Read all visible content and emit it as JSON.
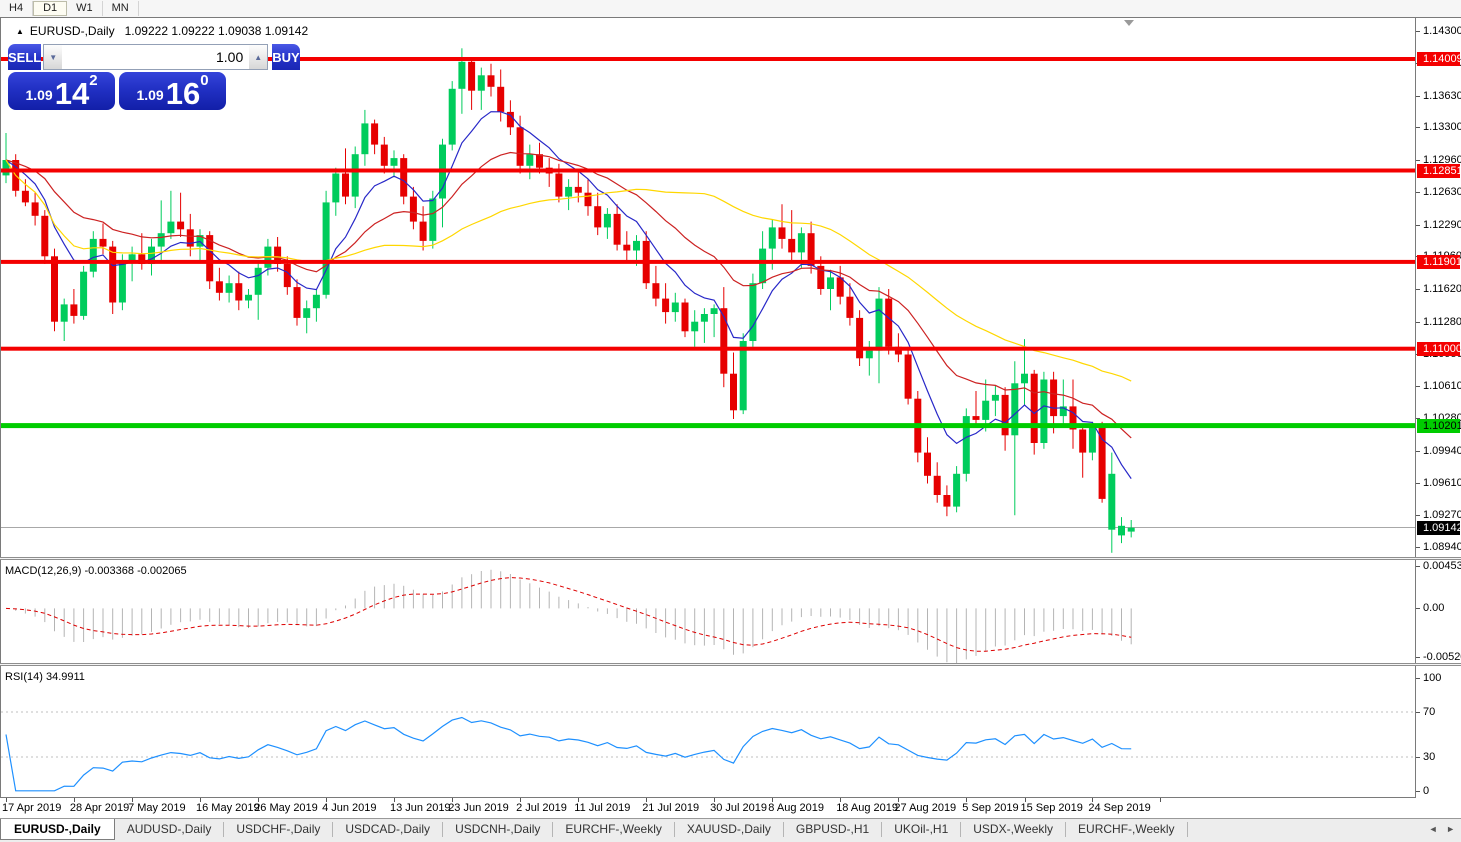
{
  "toolbar": {
    "timeframes": [
      {
        "label": "H4",
        "active": false
      },
      {
        "label": "D1",
        "active": true
      },
      {
        "label": "W1",
        "active": false
      },
      {
        "label": "MN",
        "active": false
      }
    ]
  },
  "chart": {
    "title": {
      "collapse_icon": "▲",
      "symbol_period": "EURUSD-,Daily",
      "ohlc_text": "1.09222 1.09222 1.09038 1.09142"
    },
    "one_click": {
      "sell_label": "SELL",
      "buy_label": "BUY",
      "volume": "1.00",
      "spin_down": "▼",
      "spin_up": "▲",
      "sell_price": {
        "small": "1.09",
        "big": "14",
        "sup": "2"
      },
      "buy_price": {
        "small": "1.09",
        "big": "16",
        "sup": "0"
      }
    }
  },
  "macd_panel": {
    "label": "MACD(12,26,9) -0.003368 -0.002065",
    "scale": {
      "top": "0.004536",
      "mid": "0.00",
      "bottom": "-0.005205"
    }
  },
  "rsi_panel": {
    "label": "RSI(14) 34.9911",
    "scale_ticks": [
      "100",
      "70",
      "30",
      "0"
    ]
  },
  "tabs": {
    "items": [
      {
        "label": "EURUSD-,Daily",
        "active": true
      },
      {
        "label": "AUDUSD-,Daily",
        "active": false
      },
      {
        "label": "USDCHF-,Daily",
        "active": false
      },
      {
        "label": "USDCAD-,Daily",
        "active": false
      },
      {
        "label": "USDCNH-,Daily",
        "active": false
      },
      {
        "label": "EURCHF-,Weekly",
        "active": false
      },
      {
        "label": "XAUUSD-,Daily",
        "active": false
      },
      {
        "label": "GBPUSD-,H1",
        "active": false
      },
      {
        "label": "UKOil-,H1",
        "active": false
      },
      {
        "label": "USDX-,Weekly",
        "active": false
      },
      {
        "label": "EURCHF-,Weekly",
        "active": false
      }
    ],
    "arrow_left": "◄",
    "arrow_right": "►"
  },
  "chart_data": {
    "type": "candlestick",
    "symbol": "EURUSD-",
    "timeframe": "Daily",
    "ohlc_current": {
      "open": 1.09222,
      "high": 1.09222,
      "low": 1.09038,
      "close": 1.09142
    },
    "ylim": [
      1.08836,
      1.14435
    ],
    "y_ticks": [
      1.143,
      1.1397,
      1.1363,
      1.133,
      1.1296,
      1.1263,
      1.1229,
      1.1196,
      1.1162,
      1.1128,
      1.1095,
      1.1061,
      1.1028,
      1.0994,
      1.0961,
      1.0927,
      1.0894
    ],
    "x_labels": [
      "17 Apr 2019",
      "28 Apr 2019",
      "7 May 2019",
      "16 May 2019",
      "26 May 2019",
      "4 Jun 2019",
      "13 Jun 2019",
      "23 Jun 2019",
      "2 Jul 2019",
      "11 Jul 2019",
      "21 Jul 2019",
      "30 Jul 2019",
      "8 Aug 2019",
      "18 Aug 2019",
      "27 Aug 2019",
      "5 Sep 2019",
      "15 Sep 2019",
      "24 Sep 2019"
    ],
    "x_label_indices": [
      0,
      7,
      13,
      20,
      26,
      33,
      40,
      46,
      53,
      59,
      66,
      73,
      79,
      86,
      92,
      99,
      105,
      112
    ],
    "extra_x_tick_indices": [
      119
    ],
    "hlines": [
      {
        "price": 1.14009,
        "color": "#f40000",
        "badge_text_color": "#ffffff",
        "thickness": 4
      },
      {
        "price": 1.12851,
        "color": "#f40000",
        "badge_text_color": "#ffffff",
        "thickness": 4
      },
      {
        "price": 1.11901,
        "color": "#f40000",
        "badge_text_color": "#ffffff",
        "thickness": 4
      },
      {
        "price": 1.11,
        "color": "#f40000",
        "badge_text_color": "#ffffff",
        "thickness": 4
      },
      {
        "price": 1.10201,
        "color": "#00cc00",
        "badge_text_color": "#000000",
        "thickness": 5
      }
    ],
    "current_price": 1.09142,
    "current_price_badge": {
      "bg": "#000000",
      "fg": "#ffffff"
    },
    "moving_averages": [
      {
        "method": "ema",
        "period": 8,
        "color": "#2828c8"
      },
      {
        "method": "ema",
        "period": 21,
        "color": "#cc2222"
      },
      {
        "method": "sma",
        "period": 40,
        "color": "#ffd700"
      }
    ],
    "macd": {
      "fast": 12,
      "slow": 26,
      "signal": 9,
      "current_macd": -0.003368,
      "current_signal": -0.002065,
      "scale_max": 0.004536,
      "scale_min": -0.005205,
      "histogram_color": "#b4b4b4",
      "signal_color": "#dd0000"
    },
    "rsi": {
      "period": 14,
      "current": 34.9911,
      "levels": [
        70,
        30
      ],
      "scale_ticks": [
        100,
        70,
        30,
        0
      ],
      "color": "#1e90ff",
      "level_color": "#bfbfbf"
    },
    "colors": {
      "bull": "#00cc5c",
      "bear": "#e60000",
      "background": "#ffffff",
      "bid_line": "#a8a8a8"
    },
    "candles": [
      [
        1.128,
        1.1324,
        1.1272,
        1.1296
      ],
      [
        1.1296,
        1.1302,
        1.1258,
        1.1264
      ],
      [
        1.1264,
        1.1276,
        1.1248,
        1.1252
      ],
      [
        1.1252,
        1.1262,
        1.1228,
        1.1238
      ],
      [
        1.1238,
        1.1244,
        1.1188,
        1.1196
      ],
      [
        1.1196,
        1.1204,
        1.1118,
        1.1128
      ],
      [
        1.1128,
        1.1152,
        1.1108,
        1.1146
      ],
      [
        1.1146,
        1.1162,
        1.1126,
        1.1134
      ],
      [
        1.1134,
        1.1186,
        1.113,
        1.118
      ],
      [
        1.118,
        1.1222,
        1.1174,
        1.1214
      ],
      [
        1.1214,
        1.123,
        1.1198,
        1.1206
      ],
      [
        1.1206,
        1.1212,
        1.1136,
        1.1148
      ],
      [
        1.1148,
        1.1198,
        1.114,
        1.1192
      ],
      [
        1.1192,
        1.1206,
        1.117,
        1.1198
      ],
      [
        1.1198,
        1.122,
        1.1182,
        1.1188
      ],
      [
        1.1188,
        1.1214,
        1.1176,
        1.1206
      ],
      [
        1.1206,
        1.1254,
        1.119,
        1.122
      ],
      [
        1.122,
        1.1264,
        1.1214,
        1.1232
      ],
      [
        1.1232,
        1.1262,
        1.1216,
        1.1224
      ],
      [
        1.1224,
        1.124,
        1.1196,
        1.1206
      ],
      [
        1.1206,
        1.1224,
        1.119,
        1.1218
      ],
      [
        1.1218,
        1.1222,
        1.1162,
        1.117
      ],
      [
        1.117,
        1.1184,
        1.115,
        1.1158
      ],
      [
        1.1158,
        1.1176,
        1.1148,
        1.1168
      ],
      [
        1.1168,
        1.118,
        1.114,
        1.115
      ],
      [
        1.115,
        1.1162,
        1.1142,
        1.1156
      ],
      [
        1.1156,
        1.119,
        1.113,
        1.1184
      ],
      [
        1.1184,
        1.1214,
        1.1176,
        1.1206
      ],
      [
        1.1206,
        1.1216,
        1.118,
        1.1188
      ],
      [
        1.1188,
        1.1196,
        1.1156,
        1.1164
      ],
      [
        1.1164,
        1.1172,
        1.1124,
        1.1132
      ],
      [
        1.1132,
        1.115,
        1.1116,
        1.1142
      ],
      [
        1.1142,
        1.1162,
        1.1128,
        1.1156
      ],
      [
        1.1156,
        1.1264,
        1.1152,
        1.1252
      ],
      [
        1.1252,
        1.1288,
        1.1238,
        1.1282
      ],
      [
        1.1282,
        1.1308,
        1.125,
        1.1258
      ],
      [
        1.1258,
        1.131,
        1.1246,
        1.1302
      ],
      [
        1.1302,
        1.1348,
        1.129,
        1.1334
      ],
      [
        1.1334,
        1.1338,
        1.1302,
        1.1312
      ],
      [
        1.1312,
        1.132,
        1.1282,
        1.129
      ],
      [
        1.129,
        1.1306,
        1.1278,
        1.1298
      ],
      [
        1.1298,
        1.1302,
        1.125,
        1.1258
      ],
      [
        1.1258,
        1.1268,
        1.1224,
        1.1232
      ],
      [
        1.1232,
        1.1248,
        1.1202,
        1.1212
      ],
      [
        1.1212,
        1.1264,
        1.1204,
        1.1256
      ],
      [
        1.1256,
        1.1318,
        1.1226,
        1.1312
      ],
      [
        1.1312,
        1.1378,
        1.1306,
        1.137
      ],
      [
        1.137,
        1.1412,
        1.1344,
        1.1398
      ],
      [
        1.1398,
        1.1402,
        1.1348,
        1.1368
      ],
      [
        1.1368,
        1.1392,
        1.1348,
        1.1384
      ],
      [
        1.1384,
        1.1396,
        1.1362,
        1.1372
      ],
      [
        1.1372,
        1.139,
        1.1336,
        1.1346
      ],
      [
        1.1346,
        1.1358,
        1.1322,
        1.133
      ],
      [
        1.133,
        1.1342,
        1.1282,
        1.129
      ],
      [
        1.129,
        1.1312,
        1.1276,
        1.1302
      ],
      [
        1.1302,
        1.1314,
        1.1282,
        1.1288
      ],
      [
        1.1288,
        1.1298,
        1.1268,
        1.1282
      ],
      [
        1.1282,
        1.1292,
        1.1252,
        1.1258
      ],
      [
        1.1258,
        1.1276,
        1.1244,
        1.1268
      ],
      [
        1.1268,
        1.1286,
        1.1252,
        1.1262
      ],
      [
        1.1262,
        1.1276,
        1.1238,
        1.1248
      ],
      [
        1.1248,
        1.1262,
        1.1218,
        1.1226
      ],
      [
        1.1226,
        1.1246,
        1.1214,
        1.124
      ],
      [
        1.124,
        1.125,
        1.1202,
        1.1208
      ],
      [
        1.1208,
        1.1222,
        1.1192,
        1.1202
      ],
      [
        1.1202,
        1.1218,
        1.1186,
        1.1212
      ],
      [
        1.1212,
        1.1222,
        1.1162,
        1.1168
      ],
      [
        1.1168,
        1.1186,
        1.1144,
        1.1152
      ],
      [
        1.1152,
        1.1168,
        1.1126,
        1.1138
      ],
      [
        1.1138,
        1.1158,
        1.1128,
        1.1148
      ],
      [
        1.1148,
        1.1152,
        1.1112,
        1.1118
      ],
      [
        1.1118,
        1.114,
        1.1102,
        1.1128
      ],
      [
        1.1128,
        1.1142,
        1.1106,
        1.1136
      ],
      [
        1.1136,
        1.1146,
        1.1112,
        1.1142
      ],
      [
        1.1142,
        1.1164,
        1.106,
        1.1074
      ],
      [
        1.1074,
        1.1096,
        1.1027,
        1.1036
      ],
      [
        1.1036,
        1.1116,
        1.1032,
        1.1108
      ],
      [
        1.1108,
        1.1178,
        1.1102,
        1.1168
      ],
      [
        1.1168,
        1.1222,
        1.1162,
        1.1204
      ],
      [
        1.1204,
        1.1234,
        1.1182,
        1.1226
      ],
      [
        1.1226,
        1.125,
        1.1204,
        1.1214
      ],
      [
        1.1214,
        1.1244,
        1.1192,
        1.12
      ],
      [
        1.12,
        1.1226,
        1.1184,
        1.122
      ],
      [
        1.122,
        1.1232,
        1.1178,
        1.1186
      ],
      [
        1.1186,
        1.1196,
        1.1156,
        1.1162
      ],
      [
        1.1162,
        1.1182,
        1.114,
        1.1174
      ],
      [
        1.1174,
        1.1186,
        1.1146,
        1.1154
      ],
      [
        1.1154,
        1.1168,
        1.1124,
        1.1132
      ],
      [
        1.1132,
        1.114,
        1.1082,
        1.109
      ],
      [
        1.109,
        1.1108,
        1.1072,
        1.1098
      ],
      [
        1.1098,
        1.1164,
        1.1064,
        1.1152
      ],
      [
        1.1152,
        1.1162,
        1.1094,
        1.1102
      ],
      [
        1.1102,
        1.1116,
        1.1086,
        1.1094
      ],
      [
        1.1094,
        1.1102,
        1.1042,
        1.1048
      ],
      [
        1.1048,
        1.1056,
        1.0982,
        1.0992
      ],
      [
        1.0992,
        1.1008,
        1.096,
        1.0968
      ],
      [
        1.0968,
        1.0982,
        1.094,
        1.0948
      ],
      [
        1.0948,
        1.0958,
        1.0926,
        1.0936
      ],
      [
        1.0936,
        1.0978,
        1.093,
        1.097
      ],
      [
        1.097,
        1.1038,
        1.0962,
        1.103
      ],
      [
        1.103,
        1.1056,
        1.1018,
        1.1026
      ],
      [
        1.1026,
        1.1068,
        1.1014,
        1.1046
      ],
      [
        1.1046,
        1.1062,
        1.103,
        1.1052
      ],
      [
        1.1052,
        1.106,
        1.0994,
        1.101
      ],
      [
        1.101,
        1.1087,
        1.0927,
        1.1064
      ],
      [
        1.1064,
        1.111,
        1.1042,
        1.1074
      ],
      [
        1.1074,
        1.1078,
        1.099,
        1.1002
      ],
      [
        1.1002,
        1.1076,
        1.0996,
        1.1068
      ],
      [
        1.1068,
        1.1076,
        1.1012,
        1.103
      ],
      [
        1.103,
        1.1068,
        1.1022,
        1.104
      ],
      [
        1.104,
        1.1068,
        1.0996,
        1.1016
      ],
      [
        1.1016,
        1.1022,
        1.0966,
        1.0992
      ],
      [
        1.0992,
        1.1024,
        1.0984,
        1.102
      ],
      [
        1.102,
        1.1024,
        1.094,
        1.0944
      ],
      [
        1.0912,
        1.0992,
        1.0888,
        1.097
      ],
      [
        1.0906,
        1.0925,
        1.0898,
        1.0916
      ],
      [
        1.091,
        1.0922,
        1.0904,
        1.0914
      ]
    ]
  }
}
